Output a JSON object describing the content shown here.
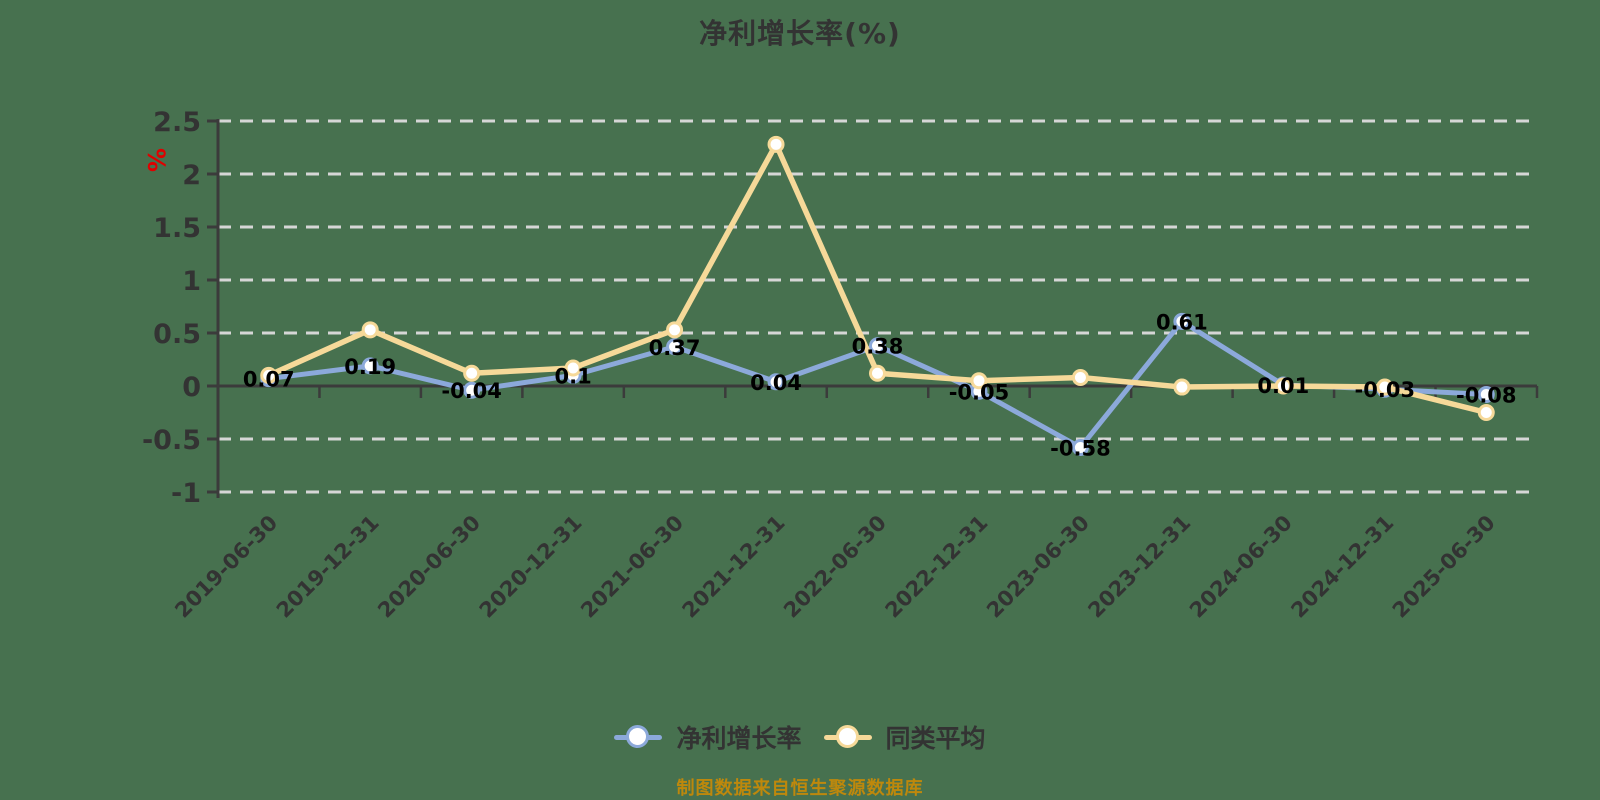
{
  "chart": {
    "title": "净利增长率(%)",
    "y_unit": "%",
    "source_note": "制图数据来自恒生聚源数据库",
    "colors": {
      "background": "#47714F",
      "series_main": "#8CA9DA",
      "series_avg": "#F6D999",
      "grid": "#D6D6D6",
      "axis": "#3B3B3B",
      "text": "#333333",
      "label": "#000000",
      "unit": "#E00000",
      "source": "#BE880C"
    }
  },
  "chart_data": {
    "type": "line",
    "title": "净利增长率(%)",
    "ylabel": "%",
    "xlabel": "",
    "grid": true,
    "legend_position": "bottom",
    "ylim": [
      -1,
      2.5
    ],
    "yticks": [
      2.5,
      2,
      1.5,
      1,
      0.5,
      0,
      -0.5,
      -1
    ],
    "y_tick_labels": [
      "2.5",
      "2",
      "1.5",
      "1",
      "0.5",
      "0",
      "-0.5",
      "-1"
    ],
    "categories": [
      "2019-06-30",
      "2019-12-31",
      "2020-06-30",
      "2020-12-31",
      "2021-06-30",
      "2021-12-31",
      "2022-06-30",
      "2022-12-31",
      "2023-06-30",
      "2023-12-31",
      "2024-06-30",
      "2024-12-31",
      "2025-06-30"
    ],
    "series": [
      {
        "name": "净利增长率",
        "color": "#8CA9DA",
        "values": [
          0.07,
          0.19,
          -0.04,
          0.1,
          0.37,
          0.04,
          0.38,
          -0.05,
          -0.58,
          0.61,
          0.01,
          -0.03,
          -0.08
        ],
        "labels": [
          "0.07",
          "0.19",
          "-0.04",
          "0.1",
          "0.37",
          "0.04",
          "0.38",
          "-0.05",
          "-0.58",
          "0.61",
          "0.01",
          "-0.03",
          "-0.08"
        ]
      },
      {
        "name": "同类平均",
        "color": "#F6D999",
        "values": [
          0.1,
          0.53,
          0.12,
          0.17,
          0.53,
          2.28,
          0.12,
          0.05,
          0.08,
          -0.01,
          0.0,
          -0.01,
          -0.25
        ]
      }
    ]
  }
}
